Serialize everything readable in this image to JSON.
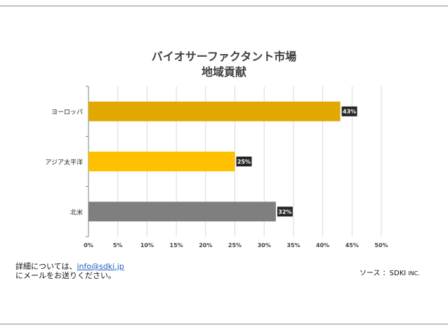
{
  "chart_data": {
    "type": "bar",
    "orientation": "horizontal",
    "title_line1": "バイオサーファクタント市場",
    "title_line2": "地域貢献",
    "categories": [
      "ヨーロッパ",
      "アジア太平洋",
      "北米"
    ],
    "values": [
      43,
      25,
      32
    ],
    "value_labels": [
      "43%",
      "25%",
      "32%"
    ],
    "bar_colors": [
      "#e0a800",
      "#ffc000",
      "#7f7f7f"
    ],
    "xlim": [
      0,
      50
    ],
    "xticks": [
      "0%",
      "5%",
      "10%",
      "15%",
      "20%",
      "25%",
      "30%",
      "35%",
      "40%",
      "45%",
      "50%"
    ],
    "grid": true
  },
  "footer": {
    "contact_line1": "詳細については、",
    "contact_email": "info@sdki.jp",
    "contact_line2": "にメールをお送りください。",
    "source_label": "ソース ：SDKI",
    "source_inc": "INC."
  }
}
